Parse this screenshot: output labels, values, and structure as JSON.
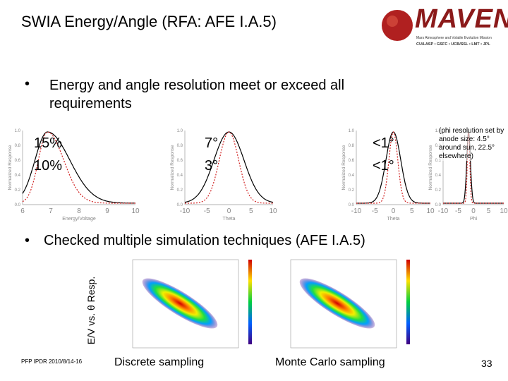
{
  "header": {
    "title": "SWIA Energy/Angle (RFA: AFE I.A.5)",
    "logo": {
      "name": "MAVEN",
      "subtitle": "Mars Atmosphere and Volatile Evolution Mission",
      "partners": "CU/LASP • GSFC • UCB/SSL • LMT • JPL"
    }
  },
  "bullets": [
    "Energy and angle resolution meet or exceed all requirements",
    "Checked multiple simulation techniques (AFE I.A.5)"
  ],
  "resolution_plots": [
    {
      "x_label": "Energy/Voltage",
      "y_label": "Normalized Response",
      "x_ticks": [
        "6",
        "7",
        "8",
        "9",
        "10"
      ],
      "y_ticks": [
        "0.0",
        "0.2",
        "0.4",
        "0.6",
        "0.8",
        "1.0"
      ],
      "annotations": [
        "15%",
        "10%"
      ]
    },
    {
      "x_label": "Theta",
      "y_label": "Normalized Response",
      "x_ticks": [
        "-10",
        "-5",
        "0",
        "5",
        "10"
      ],
      "y_ticks": [
        "0.0",
        "0.2",
        "0.4",
        "0.6",
        "0.8",
        "1.0"
      ],
      "annotations": [
        "7°",
        "3°"
      ]
    },
    {
      "x_label": "Theta",
      "y_label": "Normalized Response",
      "x_ticks": [
        "-10",
        "-5",
        "0",
        "5",
        "10"
      ],
      "y_ticks": [
        "0.0",
        "0.2",
        "0.4",
        "0.6",
        "0.8",
        "1.0"
      ],
      "annotations": [
        "<1°",
        "<1°"
      ]
    },
    {
      "x_label": "Phi",
      "y_label": "Normalized Response",
      "x_ticks": [
        "-10",
        "-5",
        "0",
        "5",
        "10"
      ],
      "y_ticks": [
        "0.0",
        "0.2",
        "0.4",
        "0.6",
        "0.8",
        "1.0"
      ],
      "annotations": [
        "(phi resolution set by anode size: 4.5° around sun, 22.5° elsewhere)"
      ]
    }
  ],
  "simulations": {
    "y_label": "E/V vs. θ Resp.",
    "captions": [
      "Discrete sampling",
      "Monte Carlo sampling"
    ]
  },
  "footer": {
    "source": "PFP IPDR 2010/8/14-16",
    "page": "33"
  }
}
